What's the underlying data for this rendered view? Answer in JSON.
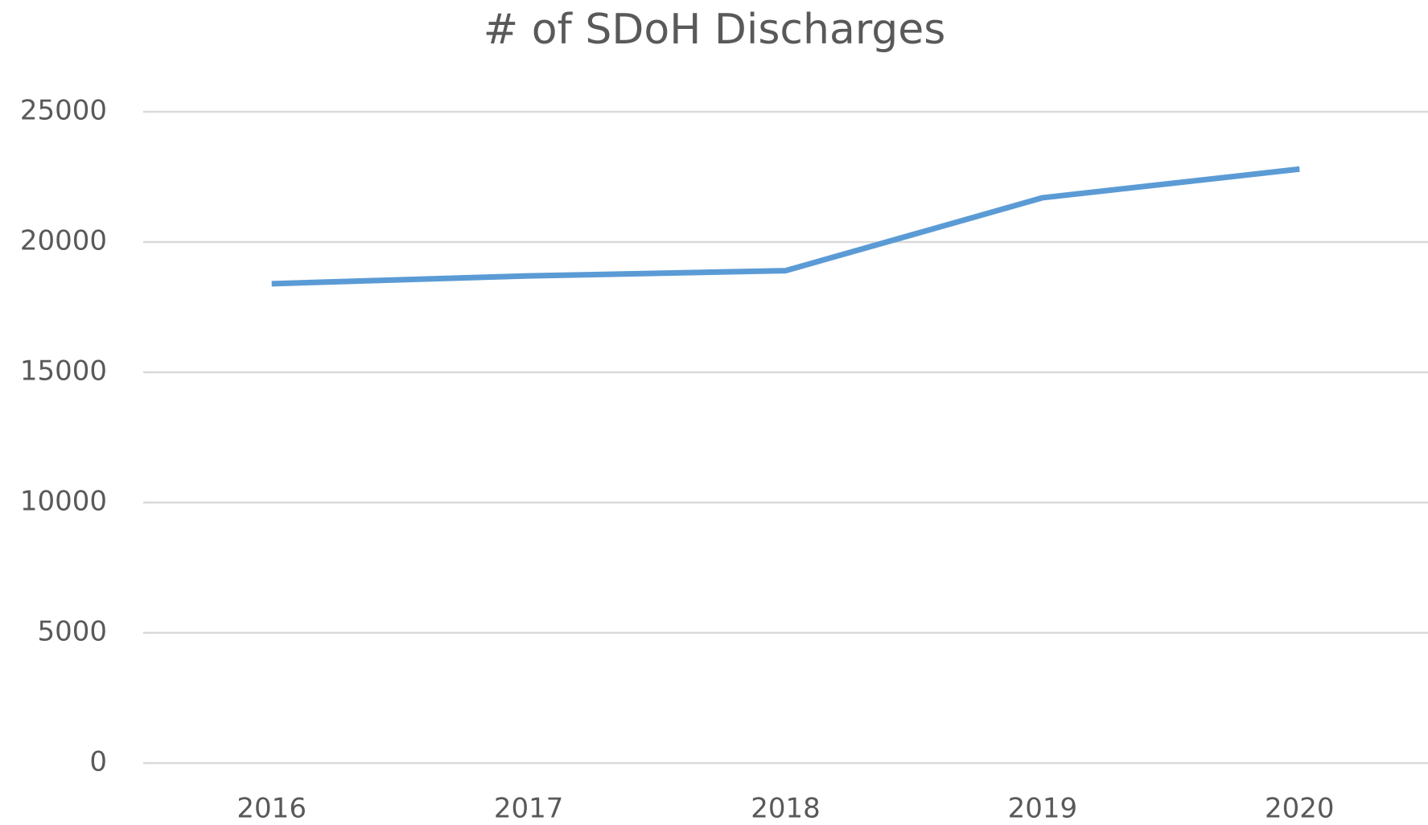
{
  "chart_data": {
    "type": "line",
    "title": "# of SDoH Discharges",
    "categories": [
      "2016",
      "2017",
      "2018",
      "2019",
      "2020"
    ],
    "series": [
      {
        "name": "# of SDoH Discharges",
        "color": "#5b9bd5",
        "values": [
          18400,
          18700,
          18900,
          21700,
          22800
        ]
      }
    ],
    "ylim": [
      0,
      25000
    ],
    "yticks": [
      0,
      5000,
      10000,
      15000,
      20000,
      25000
    ],
    "grid": true
  }
}
